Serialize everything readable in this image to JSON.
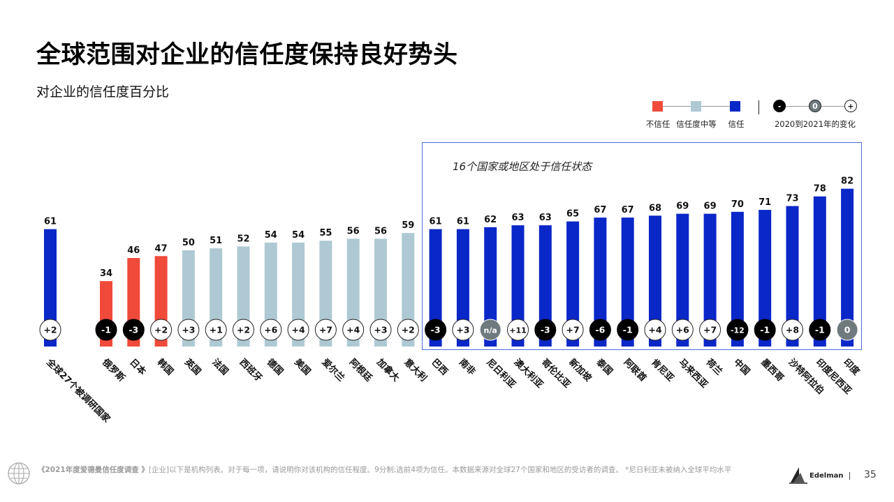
{
  "header": {
    "title": "全球范围对企业的信任度保持良好势头",
    "subtitle": "对企业的信任度百分比"
  },
  "legend": {
    "distrust": "不信任",
    "neutral": "信任度中等",
    "trust": "信任",
    "change_label": "2020到2021年的变化",
    "minus": "-",
    "zero": "0",
    "plus": "+"
  },
  "annotation": {
    "trust_note": "16个国家或地区处于信任状态"
  },
  "colors": {
    "distrust": "#f04a3a",
    "neutral": "#aec9d3",
    "trust": "#0a27c8",
    "minus_circle": "#000000",
    "zero_circle": "#6f7a7e",
    "plus_circle": "#ffffff"
  },
  "chart_data": {
    "type": "bar",
    "title": "对企业的信任度百分比",
    "ylim": [
      0,
      100
    ],
    "categories": [
      "全球27个被调研国家",
      "俄罗斯",
      "日本",
      "韩国",
      "英国",
      "法国",
      "西班牙",
      "德国",
      "美国",
      "爱尔兰",
      "阿根廷",
      "加拿大",
      "意大利",
      "巴西",
      "南非",
      "尼日利亚",
      "澳大利亚",
      "哥伦比亚",
      "新加坡",
      "泰国",
      "阿联酋",
      "肯尼亚",
      "马来西亚",
      "荷兰",
      "中国",
      "墨西哥",
      "沙特阿拉伯",
      "印度尼西亚",
      "印度"
    ],
    "values": [
      61,
      34,
      46,
      47,
      50,
      51,
      52,
      54,
      54,
      55,
      56,
      56,
      59,
      61,
      61,
      62,
      63,
      63,
      65,
      67,
      67,
      68,
      69,
      69,
      70,
      71,
      73,
      78,
      82
    ],
    "levels": [
      "trust",
      "distrust",
      "distrust",
      "distrust",
      "neutral",
      "neutral",
      "neutral",
      "neutral",
      "neutral",
      "neutral",
      "neutral",
      "neutral",
      "neutral",
      "trust",
      "trust",
      "trust",
      "trust",
      "trust",
      "trust",
      "trust",
      "trust",
      "trust",
      "trust",
      "trust",
      "trust",
      "trust",
      "trust",
      "trust",
      "trust"
    ],
    "changes": [
      "+2",
      "-1",
      "-3",
      "+2",
      "+3",
      "+1",
      "+2",
      "+6",
      "+4",
      "+7",
      "+4",
      "+3",
      "+2",
      "-3",
      "+3",
      "n/a",
      "+11",
      "-3",
      "+7",
      "-6",
      "-1",
      "+4",
      "+6",
      "+7",
      "-12",
      "-1",
      "+8",
      "-1",
      "0"
    ]
  },
  "footer": {
    "source_title": "《2021年度爱德曼信任度调查 》",
    "source_text": "[企业]以下是机构列表。对于每一项，请说明你对该机构的信任程度。9分制;选前4项为信任。本数据来源对全球27个国家和地区的受访者的调查。 *尼日利亚未被纳入全球平均水平",
    "brand": "Edelman",
    "page_number": "35"
  }
}
